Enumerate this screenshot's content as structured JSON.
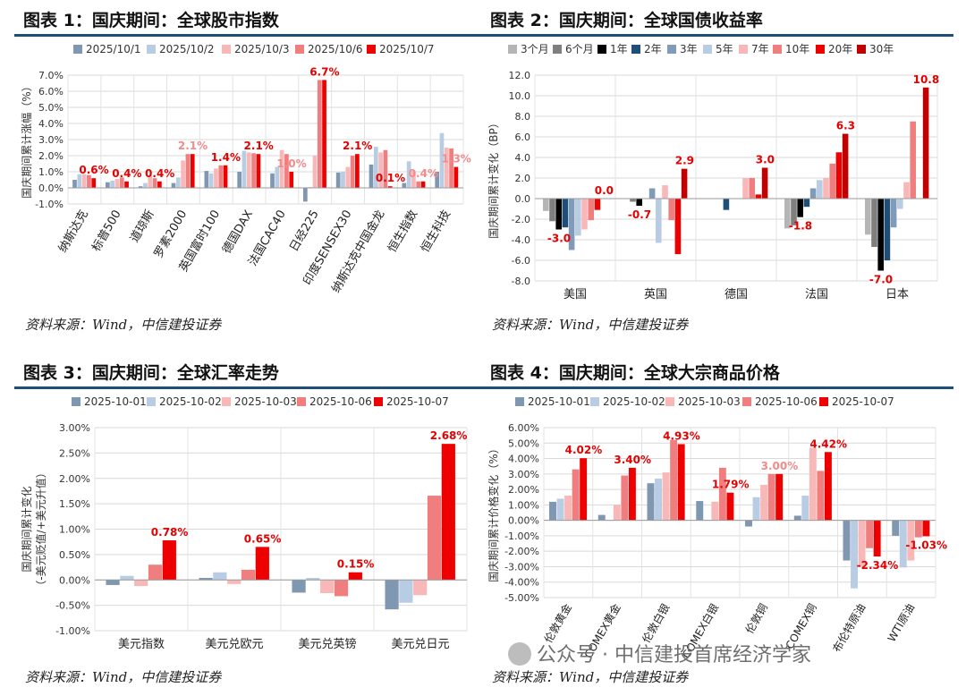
{
  "panels": [
    {
      "title": "图表 1：国庆期间：全球股市指数",
      "source": "资料来源：Wind，中信建投证券",
      "chart_data": {
        "type": "bar",
        "ylabel": "国庆期间累计涨幅（%）",
        "ylim": [
          -1.0,
          7.0
        ],
        "yticks": [
          -1.0,
          0.0,
          1.0,
          2.0,
          3.0,
          4.0,
          5.0,
          6.0,
          7.0
        ],
        "tick_suffix": "%",
        "tick_decimals": 1,
        "label_rotate": -60,
        "legend_position": "top",
        "categories": [
          "纳斯达克",
          "标普500",
          "道琼斯",
          "罗素2000",
          "英国富时100",
          "德国DAX",
          "法国CAC40",
          "日经225",
          "印度SENSEX30",
          "纳斯达克中国金龙",
          "恒生指数",
          "恒生科技"
        ],
        "series": [
          {
            "name": "2025/10/1",
            "color": "#8097b1",
            "values": [
              0.5,
              0.35,
              0.1,
              0.3,
              1.05,
              1.0,
              0.9,
              -0.85,
              0.95,
              1.45,
              0.3,
              1.0
            ]
          },
          {
            "name": "2025/10/2",
            "color": "#b8cce4",
            "values": [
              0.85,
              0.45,
              0.3,
              0.65,
              0.9,
              2.3,
              1.3,
              0.05,
              1.0,
              2.55,
              1.65,
              3.4
            ]
          },
          {
            "name": "2025/10/3",
            "color": "#f9b8b8",
            "values": [
              0.85,
              0.55,
              0.75,
              1.7,
              1.2,
              2.2,
              2.35,
              2.0,
              1.3,
              2.2,
              1.05,
              2.5
            ]
          },
          {
            "name": "2025/10/6",
            "color": "#f17e7e",
            "values": [
              0.8,
              0.65,
              0.6,
              2.1,
              1.4,
              2.15,
              2.1,
              6.7,
              2.0,
              2.35,
              0.4,
              2.45
            ]
          },
          {
            "name": "2025/10/7",
            "color": "#ee0000",
            "values": [
              0.6,
              0.4,
              0.4,
              2.1,
              1.4,
              2.1,
              1.0,
              6.7,
              2.1,
              0.1,
              0.4,
              1.3
            ]
          }
        ],
        "annotations": [
          {
            "cat": 0,
            "value": 0.6,
            "text": "0.6%",
            "color": "#e50000"
          },
          {
            "cat": 1,
            "value": 0.4,
            "text": "0.4%",
            "color": "#e50000"
          },
          {
            "cat": 2,
            "value": 0.4,
            "text": "0.4%",
            "color": "#e50000"
          },
          {
            "cat": 3,
            "value": 2.1,
            "text": "2.1%",
            "color": "#f28b8b"
          },
          {
            "cat": 4,
            "value": 1.4,
            "text": "1.4%",
            "color": "#e50000"
          },
          {
            "cat": 5,
            "value": 2.1,
            "text": "2.1%",
            "color": "#e50000"
          },
          {
            "cat": 6,
            "value": 1.0,
            "text": "1.0%",
            "color": "#f28b8b"
          },
          {
            "cat": 7,
            "value": 6.7,
            "text": "6.7%",
            "color": "#e50000"
          },
          {
            "cat": 8,
            "value": 2.1,
            "text": "2.1%",
            "color": "#e50000"
          },
          {
            "cat": 9,
            "value": 0.1,
            "text": "0.1%",
            "color": "#e50000"
          },
          {
            "cat": 10,
            "value": 0.4,
            "text": "0.4%",
            "color": "#f28b8b"
          },
          {
            "cat": 11,
            "value": 1.3,
            "text": "1.3%",
            "color": "#f28b8b"
          }
        ]
      }
    },
    {
      "title": "图表 2：国庆期间：全球国债收益率",
      "source": "资料来源：Wind，中信建投证券",
      "chart_data": {
        "type": "bar",
        "ylabel": "国庆期间累计变化（BP）",
        "ylim": [
          -8.0,
          12.0
        ],
        "yticks": [
          -8.0,
          -6.0,
          -4.0,
          -2.0,
          0.0,
          2.0,
          4.0,
          6.0,
          8.0,
          10.0,
          12.0
        ],
        "tick_suffix": "",
        "tick_decimals": 1,
        "label_rotate": 0,
        "legend_position": "top",
        "categories": [
          "美国",
          "英国",
          "德国",
          "法国",
          "日本"
        ],
        "series": [
          {
            "name": "3个月",
            "color": "#b5b5b5",
            "values": [
              -1.2,
              0.0,
              0.0,
              -2.9,
              -3.5
            ]
          },
          {
            "name": "6个月",
            "color": "#7f7f7f",
            "values": [
              -2.2,
              -0.3,
              0.0,
              -2.6,
              -4.7
            ]
          },
          {
            "name": "1年",
            "color": "#000000",
            "values": [
              -3.0,
              -0.7,
              0.0,
              -1.8,
              -7.0
            ]
          },
          {
            "name": "2年",
            "color": "#1f4e79",
            "values": [
              -2.8,
              0.0,
              -1.1,
              -0.8,
              -6.0
            ]
          },
          {
            "name": "3年",
            "color": "#7f9bb8",
            "values": [
              -5.0,
              1.0,
              0.0,
              1.0,
              -2.8
            ]
          },
          {
            "name": "5年",
            "color": "#b8cce4",
            "values": [
              -3.6,
              -4.3,
              0.0,
              1.8,
              -1.0
            ]
          },
          {
            "name": "7年",
            "color": "#f9b8b8",
            "values": [
              -3.0,
              1.3,
              2.0,
              2.0,
              1.6
            ]
          },
          {
            "name": "10年",
            "color": "#f17e7e",
            "values": [
              -2.1,
              -2.1,
              2.0,
              3.4,
              7.5
            ]
          },
          {
            "name": "20年",
            "color": "#ee0000",
            "values": [
              -1.1,
              -5.4,
              0.4,
              4.5,
              0.0
            ]
          },
          {
            "name": "30年",
            "color": "#c00000",
            "values": [
              0.0,
              2.9,
              3.0,
              6.3,
              10.8
            ]
          }
        ],
        "annotations": [
          {
            "cat": 0,
            "value": 0.0,
            "text": "0.0",
            "color": "#e50000",
            "series": 9,
            "pos": "above"
          },
          {
            "cat": 0,
            "value": -3.0,
            "text": "-3.0",
            "color": "#e50000",
            "series": 2,
            "pos": "below"
          },
          {
            "cat": 1,
            "value": -0.7,
            "text": "-0.7",
            "color": "#e50000",
            "series": 2,
            "pos": "below"
          },
          {
            "cat": 1,
            "value": 2.9,
            "text": "2.9",
            "color": "#e50000",
            "series": 9,
            "pos": "above"
          },
          {
            "cat": 2,
            "value": 3.0,
            "text": "3.0",
            "color": "#e50000",
            "series": 9,
            "pos": "above"
          },
          {
            "cat": 3,
            "value": -1.8,
            "text": "-1.8",
            "color": "#e50000",
            "series": 2,
            "pos": "below"
          },
          {
            "cat": 3,
            "value": 6.3,
            "text": "6.3",
            "color": "#e50000",
            "series": 9,
            "pos": "above"
          },
          {
            "cat": 4,
            "value": -7.0,
            "text": "-7.0",
            "color": "#e50000",
            "series": 2,
            "pos": "below"
          },
          {
            "cat": 4,
            "value": 10.8,
            "text": "10.8",
            "color": "#e50000",
            "series": 9,
            "pos": "above"
          }
        ]
      }
    },
    {
      "title": "图表 3：国庆期间：全球汇率走势",
      "source": "资料来源：Wind，中信建投证券",
      "chart_data": {
        "type": "bar",
        "ylabel": "国庆期间累计变化",
        "ylabel2": "（-美元贬值/+美元升值）",
        "ylim": [
          -1.0,
          3.0
        ],
        "yticks": [
          -1.0,
          -0.5,
          0.0,
          0.5,
          1.0,
          1.5,
          2.0,
          2.5,
          3.0
        ],
        "tick_suffix": "%",
        "tick_decimals": 2,
        "label_rotate": 0,
        "legend_position": "top",
        "categories": [
          "美元指数",
          "美元兑欧元",
          "美元兑英镑",
          "美元兑日元"
        ],
        "series": [
          {
            "name": "2025-10-01",
            "color": "#8097b1",
            "values": [
              -0.1,
              0.04,
              -0.25,
              -0.58
            ]
          },
          {
            "name": "2025-10-02",
            "color": "#b8cce4",
            "values": [
              0.08,
              0.15,
              0.04,
              -0.45
            ]
          },
          {
            "name": "2025-10-03",
            "color": "#f9b8b8",
            "values": [
              -0.12,
              -0.08,
              -0.26,
              -0.3
            ]
          },
          {
            "name": "2025-10-06",
            "color": "#f17e7e",
            "values": [
              0.3,
              0.2,
              -0.32,
              1.66
            ]
          },
          {
            "name": "2025-10-07",
            "color": "#ee0000",
            "values": [
              0.78,
              0.65,
              0.15,
              2.68
            ]
          }
        ],
        "annotations": [
          {
            "cat": 0,
            "value": 0.78,
            "text": "0.78%",
            "color": "#e50000"
          },
          {
            "cat": 1,
            "value": 0.65,
            "text": "0.65%",
            "color": "#e50000"
          },
          {
            "cat": 2,
            "value": 0.15,
            "text": "0.15%",
            "color": "#e50000"
          },
          {
            "cat": 3,
            "value": 2.68,
            "text": "2.68%",
            "color": "#e50000"
          }
        ]
      }
    },
    {
      "title": "图表 4：国庆期间：全球大宗商品价格",
      "source": "资料来源：Wind，中信建投证券",
      "chart_data": {
        "type": "bar",
        "ylabel": "国庆期间累计价格变化（%）",
        "ylim": [
          -5.0,
          6.0
        ],
        "yticks": [
          -5.0,
          -4.0,
          -3.0,
          -2.0,
          -1.0,
          0.0,
          1.0,
          2.0,
          3.0,
          4.0,
          5.0,
          6.0
        ],
        "tick_suffix": "%",
        "tick_decimals": 2,
        "label_rotate": -60,
        "legend_position": "top",
        "categories": [
          "伦敦黄金",
          "COMEX黄金",
          "伦敦白银",
          "COMEX白银",
          "伦敦铜",
          "COMEX铜",
          "布伦特原油",
          "WTI原油"
        ],
        "series": [
          {
            "name": "2025-10-01",
            "color": "#8097b1",
            "values": [
              1.2,
              0.35,
              2.4,
              1.25,
              -0.4,
              0.3,
              -2.6,
              -1.0
            ]
          },
          {
            "name": "2025-10-02",
            "color": "#b8cce4",
            "values": [
              1.4,
              0.0,
              2.7,
              0.0,
              1.5,
              1.6,
              -4.4,
              -3.05
            ]
          },
          {
            "name": "2025-10-03",
            "color": "#f9b8b8",
            "values": [
              1.6,
              1.0,
              3.1,
              1.2,
              2.3,
              4.7,
              -3.0,
              -2.6
            ]
          },
          {
            "name": "2025-10-06",
            "color": "#f17e7e",
            "values": [
              3.3,
              2.9,
              5.2,
              3.4,
              3.0,
              3.2,
              -1.8,
              -1.1
            ]
          },
          {
            "name": "2025-10-07",
            "color": "#ee0000",
            "values": [
              4.02,
              3.4,
              4.93,
              1.79,
              3.0,
              4.42,
              -2.34,
              -1.03
            ]
          }
        ],
        "annotations": [
          {
            "cat": 0,
            "value": 4.02,
            "text": "4.02%",
            "color": "#e50000"
          },
          {
            "cat": 1,
            "value": 3.4,
            "text": "3.40%",
            "color": "#e50000"
          },
          {
            "cat": 2,
            "value": 4.93,
            "text": "4.93%",
            "color": "#e50000"
          },
          {
            "cat": 3,
            "value": 1.79,
            "text": "1.79%",
            "color": "#e50000"
          },
          {
            "cat": 4,
            "value": 3.0,
            "text": "3.00%",
            "color": "#f28b8b"
          },
          {
            "cat": 5,
            "value": 4.42,
            "text": "4.42%",
            "color": "#e50000"
          },
          {
            "cat": 6,
            "value": -2.34,
            "text": "-2.34%",
            "color": "#e50000"
          },
          {
            "cat": 7,
            "value": -1.03,
            "text": "-1.03%",
            "color": "#e50000"
          }
        ]
      }
    }
  ],
  "watermark": {
    "text": "公众号 · 中信建投首席经济学家",
    "icon": "wechat-icon"
  }
}
